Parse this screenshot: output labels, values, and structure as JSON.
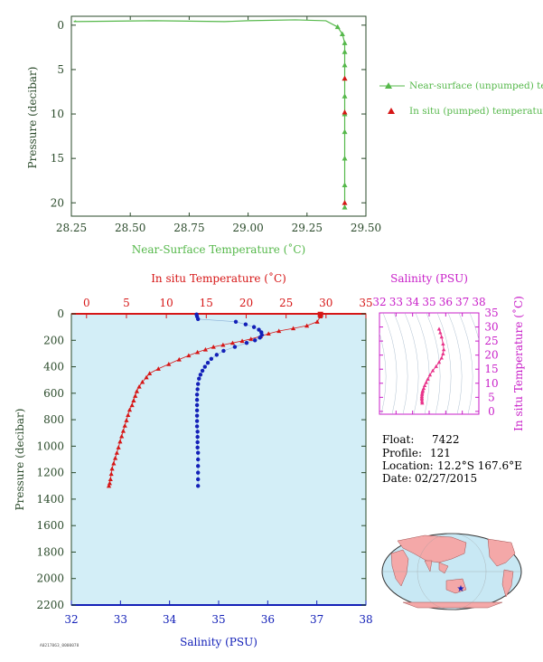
{
  "colors": {
    "green": "#55b84a",
    "red": "#d61616",
    "blue": "#1320b8",
    "magenta": "#c81ec8",
    "axis_dark": "#2a4a2a",
    "plot_bg": "#d3eef7",
    "pink": "#e8338a",
    "land": "#f4a8a8",
    "ocean": "#c8e8f4"
  },
  "float_info": {
    "float_label": "Float:",
    "float_value": "7422",
    "profile_label": "Profile:",
    "profile_value": "121",
    "location_label": "Location:",
    "location_value": "12.2°S  167.6°E",
    "date_label": "Date:",
    "date_value": "02/27/2015"
  },
  "footer_code": "A0217063_0000078",
  "map": {
    "marker_icon": "star-icon"
  },
  "chart_data": [
    {
      "id": "near_surface",
      "type": "line",
      "xlabel": "Near-Surface Temperature (˚C)",
      "ylabel": "Pressure (decibar)",
      "xlim": [
        28.25,
        29.5
      ],
      "ylim": [
        21.5,
        -1
      ],
      "xticks": [
        28.25,
        28.5,
        28.75,
        29.0,
        29.25,
        29.5
      ],
      "xtick_labels": [
        "28.25",
        "28.50",
        "28.75",
        "29.00",
        "29.25",
        "29.50"
      ],
      "yticks": [
        0,
        5,
        10,
        15,
        20
      ],
      "ytick_labels": [
        "0",
        "5",
        "10",
        "15",
        "20"
      ],
      "legend_position": "right",
      "series": [
        {
          "name": "Near-surface (unpumped) temperature.",
          "marker": "triangle",
          "x": [
            28.27,
            28.26,
            28.6,
            28.9,
            29.0,
            29.2,
            29.33,
            29.38,
            29.4,
            29.41,
            29.41,
            29.41,
            29.41,
            29.41,
            29.41,
            29.41,
            29.41,
            29.41,
            29.41
          ],
          "y": [
            -0.5,
            -0.4,
            -0.5,
            -0.4,
            -0.5,
            -0.6,
            -0.5,
            0.2,
            1.0,
            2.0,
            3.0,
            4.5,
            6.0,
            8.0,
            10.0,
            12.0,
            15.0,
            18.0,
            20.5
          ]
        },
        {
          "name": "In situ (pumped) temperature.",
          "marker": "triangle",
          "x": [
            29.41,
            29.41,
            29.41
          ],
          "y": [
            6.0,
            9.8,
            20.0
          ]
        }
      ]
    },
    {
      "id": "profile",
      "type": "scatter",
      "top_xlabel": "In situ Temperature (˚C)",
      "bottom_xlabel": "Salinity (PSU)",
      "ylabel": "Pressure (decibar)",
      "temp_lim": [
        -1.9,
        35
      ],
      "temp_ticks": [
        0,
        5,
        10,
        15,
        20,
        25,
        30,
        35
      ],
      "sal_lim": [
        32,
        38
      ],
      "sal_ticks": [
        32,
        33,
        34,
        35,
        36,
        37,
        38
      ],
      "ylim": [
        2200,
        0
      ],
      "yticks": [
        0,
        200,
        400,
        600,
        800,
        1000,
        1200,
        1400,
        1600,
        1800,
        2000,
        2200
      ],
      "temperature": {
        "x": [
          29.3,
          29.3,
          28.9,
          27.6,
          25.9,
          24.1,
          22.8,
          21.8,
          20.6,
          19.5,
          18.3,
          17.1,
          15.9,
          14.9,
          13.9,
          12.8,
          11.6,
          10.3,
          9.0,
          7.9,
          7.5,
          7.0,
          6.6,
          6.3,
          6.1,
          5.9,
          5.7,
          5.4,
          5.2,
          5.0,
          4.8,
          4.6,
          4.4,
          4.2,
          4.0,
          3.8,
          3.6,
          3.4,
          3.2,
          3.1,
          3.0,
          2.9,
          2.8
        ],
        "y": [
          5,
          20,
          60,
          90,
          110,
          130,
          150,
          170,
          190,
          205,
          220,
          235,
          250,
          270,
          290,
          315,
          345,
          380,
          415,
          450,
          480,
          515,
          550,
          585,
          620,
          655,
          690,
          725,
          765,
          805,
          845,
          885,
          925,
          965,
          1010,
          1050,
          1090,
          1130,
          1170,
          1210,
          1250,
          1280,
          1300
        ]
      },
      "salinity": {
        "x": [
          34.55,
          34.56,
          34.58,
          35.35,
          35.55,
          35.72,
          35.82,
          35.87,
          35.88,
          35.84,
          35.74,
          35.57,
          35.33,
          35.1,
          34.96,
          34.85,
          34.78,
          34.72,
          34.67,
          34.63,
          34.6,
          34.58,
          34.57,
          34.56,
          34.56,
          34.56,
          34.56,
          34.56,
          34.56,
          34.56,
          34.57,
          34.57,
          34.57,
          34.57,
          34.58,
          34.58,
          34.58,
          34.58,
          34.58,
          34.58
        ],
        "y": [
          5,
          20,
          40,
          60,
          80,
          100,
          120,
          140,
          160,
          180,
          200,
          220,
          250,
          280,
          310,
          340,
          370,
          400,
          430,
          460,
          490,
          530,
          570,
          610,
          650,
          690,
          730,
          770,
          810,
          850,
          890,
          930,
          970,
          1010,
          1050,
          1100,
          1150,
          1200,
          1250,
          1300
        ]
      }
    },
    {
      "id": "ts_diagram",
      "type": "scatter",
      "xlabel": "Salinity (PSU)",
      "ylabel": "In situ Temperature (˚C)",
      "xlim": [
        32,
        38
      ],
      "ylim": [
        -1,
        35
      ],
      "xticks": [
        32,
        33,
        34,
        35,
        36,
        37,
        38
      ],
      "yticks": [
        0,
        5,
        10,
        15,
        20,
        25,
        30,
        35
      ],
      "points": {
        "x": [
          35.6,
          35.67,
          35.75,
          35.84,
          35.88,
          35.84,
          35.75,
          35.6,
          35.42,
          35.22,
          35.05,
          34.92,
          34.82,
          34.73,
          34.67,
          34.62,
          34.6,
          34.58,
          34.57,
          34.56,
          34.56,
          34.56,
          34.57,
          34.58
        ],
        "y": [
          29.3,
          28.0,
          26.5,
          24.0,
          22.0,
          20.5,
          19.0,
          17.5,
          16.0,
          14.5,
          13.0,
          11.5,
          10.3,
          9.2,
          8.2,
          7.5,
          7.0,
          6.4,
          5.9,
          5.3,
          4.8,
          4.3,
          3.6,
          3.0
        ]
      }
    }
  ]
}
